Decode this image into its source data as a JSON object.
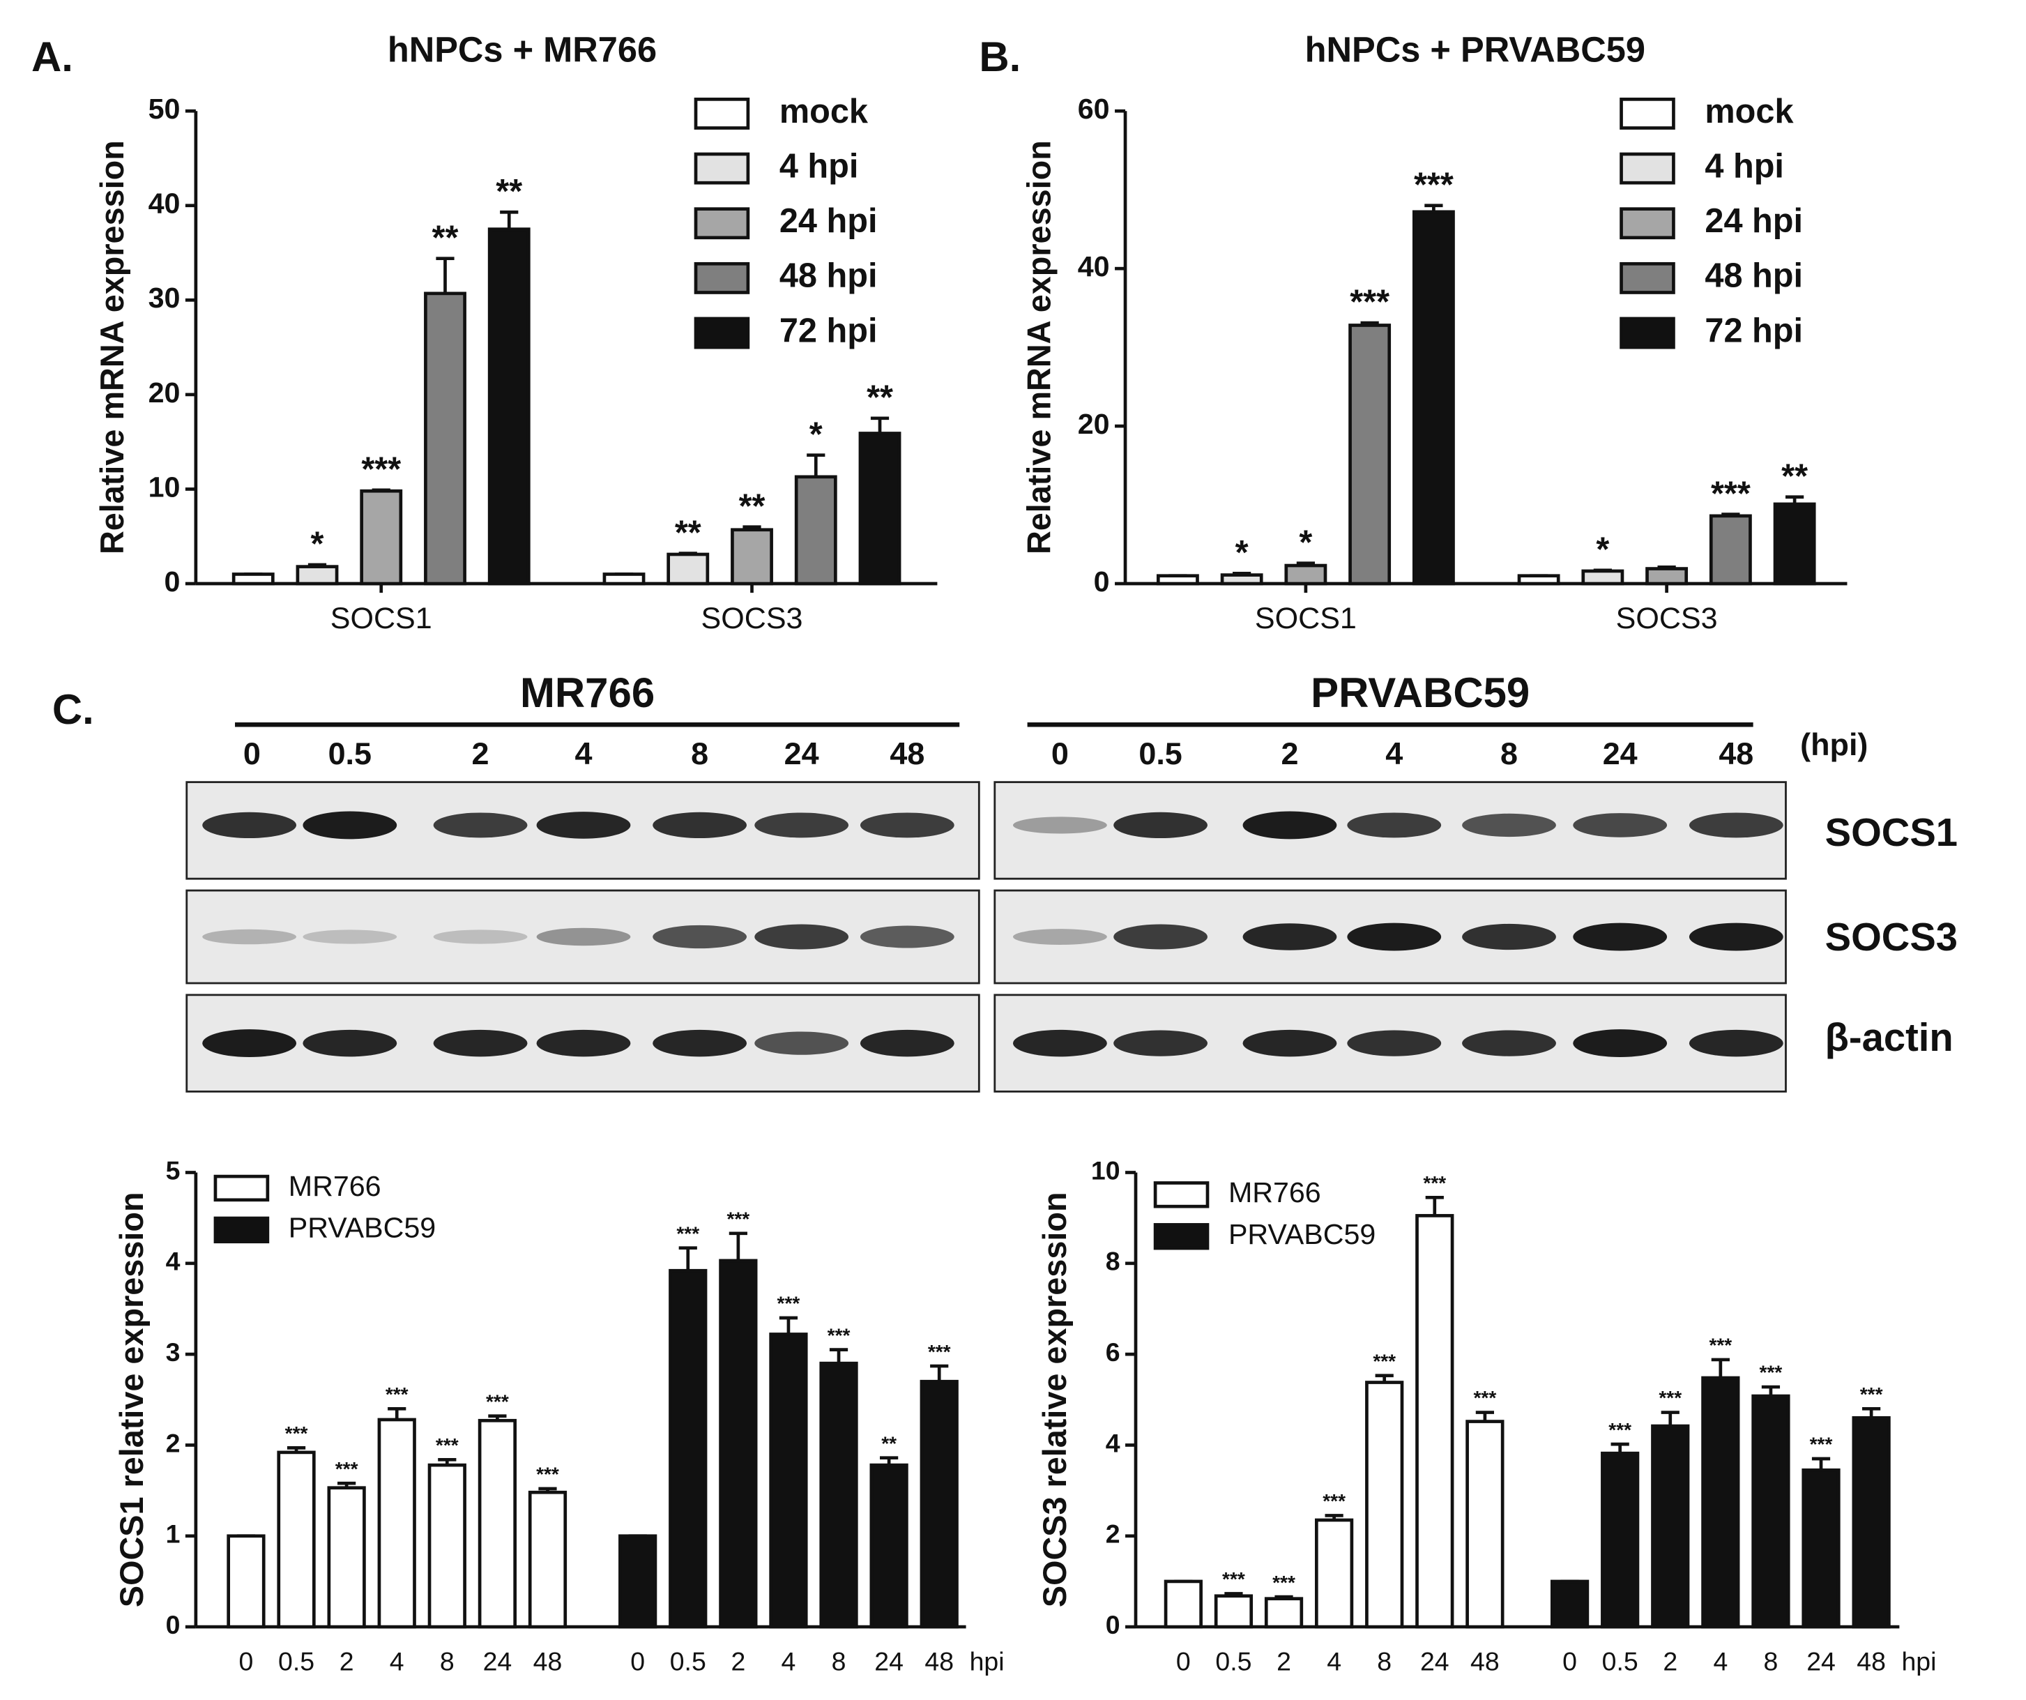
{
  "panel_labels": [
    "A.",
    "B.",
    "C."
  ],
  "chart_data": [
    {
      "type": "bar",
      "title": "hNPCs + MR766",
      "ylabel": "Relative mRNA expression",
      "categories": [
        "SOCS1",
        "SOCS3"
      ],
      "ylim": [
        0,
        50
      ],
      "yticks": [
        0,
        10,
        20,
        30,
        40,
        50
      ],
      "legend": "upper right",
      "series": [
        {
          "name": "mock",
          "color": "#ffffff",
          "values": [
            1,
            1
          ],
          "errors": [
            0,
            0
          ],
          "annotations": [
            null,
            null
          ]
        },
        {
          "name": "4 hpi",
          "color": "#e2e2e2",
          "values": [
            1.8,
            3.1
          ],
          "errors": [
            0.2,
            0.1
          ],
          "annotations": [
            "*",
            "**"
          ]
        },
        {
          "name": "24 hpi",
          "color": "#a6a6a6",
          "values": [
            9.8,
            5.7
          ],
          "errors": [
            0.1,
            0.3
          ],
          "annotations": [
            "***",
            "**"
          ]
        },
        {
          "name": "48 hpi",
          "color": "#7f7f7f",
          "values": [
            30.7,
            11.3
          ],
          "errors": [
            3.7,
            2.3
          ],
          "annotations": [
            "**",
            "*"
          ]
        },
        {
          "name": "72 hpi",
          "color": "#111111",
          "values": [
            37.5,
            15.9
          ],
          "errors": [
            1.8,
            1.6
          ],
          "annotations": [
            "**",
            "**"
          ]
        }
      ]
    },
    {
      "type": "bar",
      "title": "hNPCs + PRVABC59",
      "ylabel": "Relative mRNA expression",
      "categories": [
        "SOCS1",
        "SOCS3"
      ],
      "ylim": [
        0,
        60
      ],
      "yticks": [
        0,
        20,
        40,
        60
      ],
      "legend": "upper right",
      "series": [
        {
          "name": "mock",
          "color": "#ffffff",
          "values": [
            1,
            1
          ],
          "errors": [
            0,
            0
          ],
          "annotations": [
            null,
            null
          ]
        },
        {
          "name": "4 hpi",
          "color": "#e2e2e2",
          "values": [
            1.1,
            1.6
          ],
          "errors": [
            0.2,
            0.1
          ],
          "annotations": [
            "*",
            "*"
          ]
        },
        {
          "name": "24 hpi",
          "color": "#a6a6a6",
          "values": [
            2.3,
            1.9
          ],
          "errors": [
            0.3,
            0.2
          ],
          "annotations": [
            "*",
            null
          ]
        },
        {
          "name": "48 hpi",
          "color": "#7f7f7f",
          "values": [
            32.8,
            8.6
          ],
          "errors": [
            0.3,
            0.2
          ],
          "annotations": [
            "***",
            "***"
          ]
        },
        {
          "name": "72 hpi",
          "color": "#111111",
          "values": [
            47.2,
            10.1
          ],
          "errors": [
            0.8,
            0.9
          ],
          "annotations": [
            "***",
            "**"
          ]
        }
      ]
    },
    {
      "type": "bar",
      "ylabel": "SOCS1 relative expression",
      "x_unit": "hpi",
      "categories": [
        "0",
        "0.5",
        "2",
        "4",
        "8",
        "24",
        "48"
      ],
      "ylim": [
        0,
        5
      ],
      "yticks": [
        0,
        1,
        2,
        3,
        4,
        5
      ],
      "legend": "upper left",
      "series": [
        {
          "name": "MR766",
          "color": "#ffffff",
          "values": [
            1,
            1.92,
            1.53,
            2.28,
            1.78,
            2.27,
            1.48
          ],
          "errors": [
            0,
            0.05,
            0.05,
            0.12,
            0.06,
            0.05,
            0.04
          ],
          "annotations": [
            null,
            "***",
            "***",
            "***",
            "***",
            "***",
            "***"
          ]
        },
        {
          "name": "PRVABC59",
          "color": "#111111",
          "values": [
            1,
            3.92,
            4.03,
            3.22,
            2.9,
            1.78,
            2.7
          ],
          "errors": [
            0,
            0.25,
            0.3,
            0.18,
            0.15,
            0.08,
            0.17
          ],
          "annotations": [
            null,
            "***",
            "***",
            "***",
            "***",
            "**",
            "***"
          ]
        }
      ]
    },
    {
      "type": "bar",
      "ylabel": "SOCS3 relative expression",
      "x_unit": "hpi",
      "categories": [
        "0",
        "0.5",
        "2",
        "4",
        "8",
        "24",
        "48"
      ],
      "ylim": [
        0,
        10
      ],
      "yticks": [
        0,
        2,
        4,
        6,
        8,
        10
      ],
      "legend": "upper left",
      "series": [
        {
          "name": "MR766",
          "color": "#ffffff",
          "values": [
            1,
            0.68,
            0.62,
            2.35,
            5.38,
            9.05,
            4.52
          ],
          "errors": [
            0,
            0.05,
            0.04,
            0.1,
            0.15,
            0.4,
            0.2
          ],
          "annotations": [
            null,
            "***",
            "***",
            "***",
            "***",
            "***",
            "***"
          ]
        },
        {
          "name": "PRVABC59",
          "color": "#111111",
          "values": [
            1,
            3.82,
            4.42,
            5.48,
            5.08,
            3.45,
            4.6
          ],
          "errors": [
            0,
            0.2,
            0.3,
            0.4,
            0.2,
            0.25,
            0.2
          ],
          "annotations": [
            null,
            "***",
            "***",
            "***",
            "***",
            "***",
            "***"
          ]
        }
      ]
    }
  ],
  "blot": {
    "strains": [
      "MR766",
      "PRVABC59"
    ],
    "lanes": [
      "0",
      "0.5",
      "2",
      "4",
      "8",
      "24",
      "48"
    ],
    "lane_unit": "(hpi)",
    "rows": [
      "SOCS1",
      "SOCS3",
      "β-actin"
    ]
  }
}
